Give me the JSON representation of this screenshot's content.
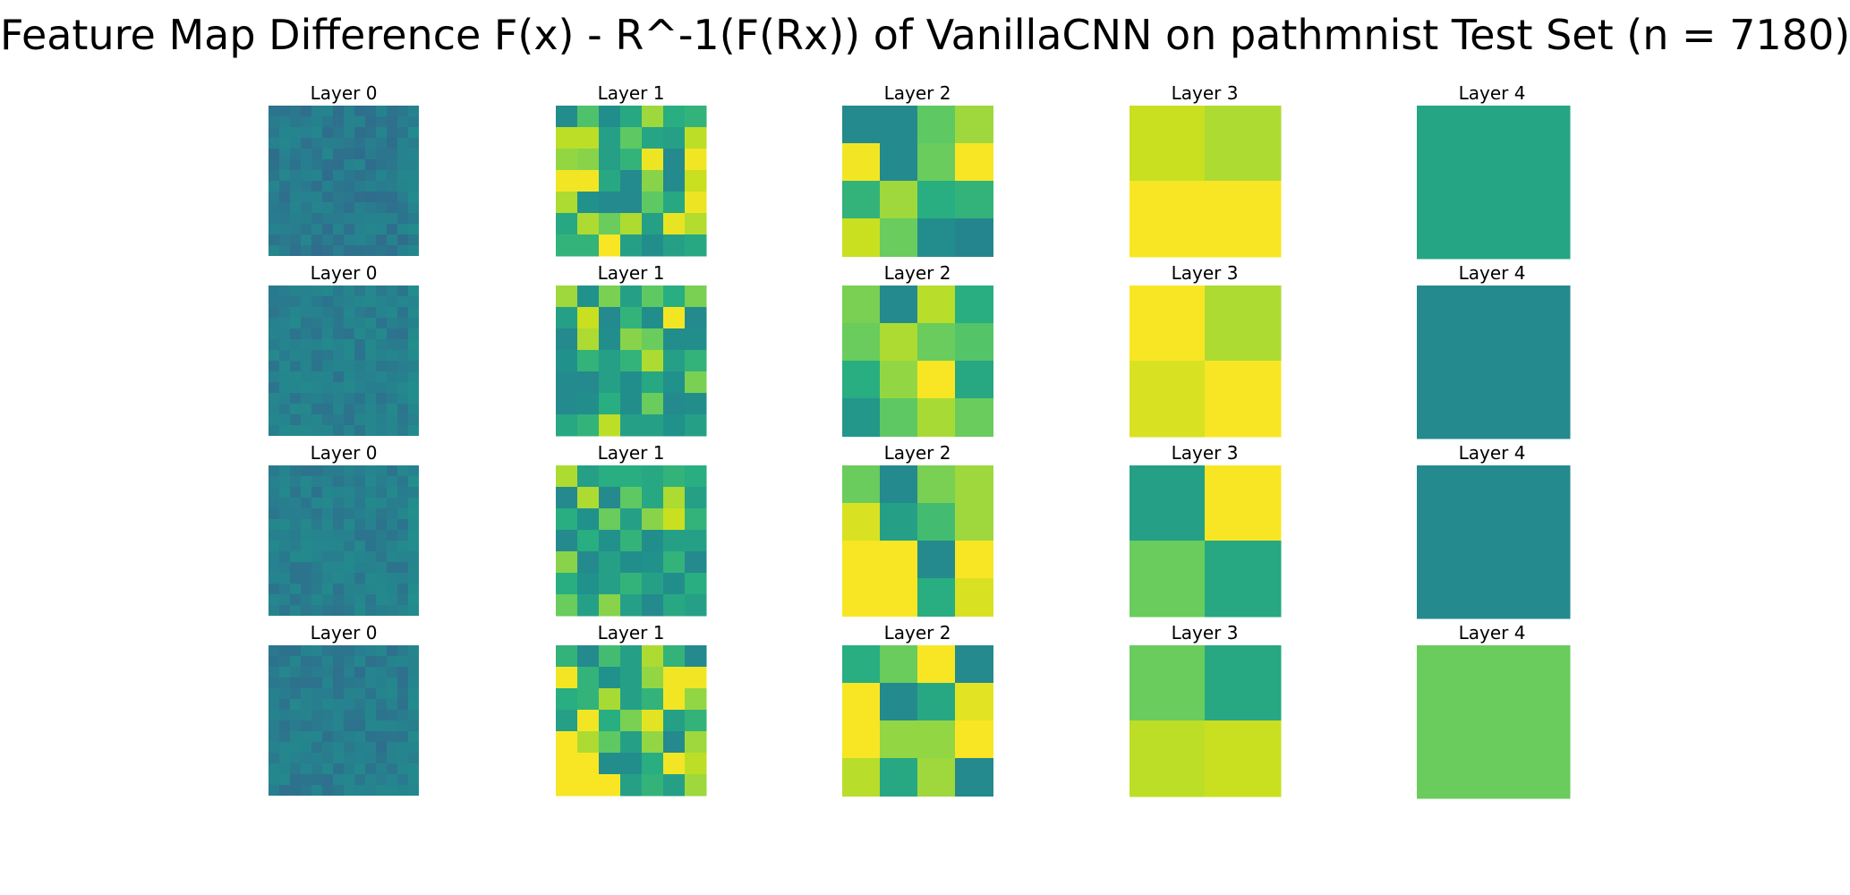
{
  "title": "Feature Map Difference F(x) - R^-1(F(Rx)) of VanillaCNN on pathmnist Test Set (n = 7180)",
  "chart_data": {
    "type": "heatmap",
    "colormap": "viridis (upper range)",
    "grid": false,
    "axes_visible": false,
    "rows": [
      {
        "panels": [
          {
            "title": "Layer 0",
            "size": 14,
            "noise": {
              "base": 0.38,
              "amp": 0.05,
              "seed": 11
            }
          },
          {
            "title": "Layer 1",
            "size": 7,
            "values": [
              [
                0.47,
                0.67,
                0.48,
                0.58,
                0.82,
                0.6,
                0.62
              ],
              [
                0.88,
                0.88,
                0.55,
                0.7,
                0.57,
                0.55,
                0.88
              ],
              [
                0.8,
                0.78,
                0.55,
                0.62,
                0.97,
                0.45,
                0.98
              ],
              [
                0.98,
                0.98,
                0.58,
                0.46,
                0.78,
                0.45,
                0.9
              ],
              [
                0.85,
                0.5,
                0.45,
                0.45,
                0.7,
                0.58,
                0.97
              ],
              [
                0.58,
                0.85,
                0.72,
                0.85,
                0.55,
                0.96,
                0.86
              ],
              [
                0.62,
                0.62,
                0.99,
                0.55,
                0.48,
                0.55,
                0.58
              ]
            ]
          },
          {
            "title": "Layer 2",
            "size": 4,
            "values": [
              [
                0.45,
                0.45,
                0.7,
                0.82
              ],
              [
                0.98,
                0.45,
                0.72,
                0.99
              ],
              [
                0.62,
                0.82,
                0.6,
                0.62
              ],
              [
                0.9,
                0.72,
                0.47,
                0.42
              ]
            ]
          },
          {
            "title": "Layer 3",
            "size": 2,
            "values": [
              [
                0.9,
                0.85
              ],
              [
                0.99,
                0.99
              ]
            ]
          },
          {
            "title": "Layer 4",
            "size": 1,
            "values": [
              [
                0.57
              ]
            ]
          }
        ]
      },
      {
        "panels": [
          {
            "title": "Layer 0",
            "size": 14,
            "noise": {
              "base": 0.4,
              "amp": 0.05,
              "seed": 23
            }
          },
          {
            "title": "Layer 1",
            "size": 7,
            "values": [
              [
                0.82,
                0.5,
                0.75,
                0.55,
                0.7,
                0.6,
                0.75
              ],
              [
                0.55,
                0.9,
                0.45,
                0.62,
                0.48,
                0.98,
                0.45
              ],
              [
                0.45,
                0.85,
                0.48,
                0.78,
                0.72,
                0.48,
                0.48
              ],
              [
                0.5,
                0.62,
                0.55,
                0.62,
                0.85,
                0.55,
                0.62
              ],
              [
                0.45,
                0.45,
                0.55,
                0.48,
                0.58,
                0.5,
                0.75
              ],
              [
                0.45,
                0.48,
                0.6,
                0.48,
                0.72,
                0.45,
                0.48
              ],
              [
                0.58,
                0.62,
                0.88,
                0.55,
                0.55,
                0.5,
                0.55
              ]
            ]
          },
          {
            "title": "Layer 2",
            "size": 4,
            "values": [
              [
                0.75,
                0.45,
                0.87,
                0.6
              ],
              [
                0.72,
                0.85,
                0.72,
                0.68
              ],
              [
                0.6,
                0.8,
                0.99,
                0.58
              ],
              [
                0.52,
                0.7,
                0.84,
                0.72
              ]
            ]
          },
          {
            "title": "Layer 3",
            "size": 2,
            "values": [
              [
                0.99,
                0.85
              ],
              [
                0.93,
                0.99
              ]
            ]
          },
          {
            "title": "Layer 4",
            "size": 1,
            "values": [
              [
                0.45
              ]
            ]
          }
        ]
      },
      {
        "panels": [
          {
            "title": "Layer 0",
            "size": 14,
            "noise": {
              "base": 0.4,
              "amp": 0.05,
              "seed": 37
            }
          },
          {
            "title": "Layer 1",
            "size": 7,
            "values": [
              [
                0.85,
                0.55,
                0.6,
                0.6,
                0.58,
                0.62,
                0.6
              ],
              [
                0.45,
                0.85,
                0.45,
                0.7,
                0.58,
                0.85,
                0.55
              ],
              [
                0.6,
                0.5,
                0.72,
                0.55,
                0.78,
                0.9,
                0.62
              ],
              [
                0.45,
                0.6,
                0.5,
                0.62,
                0.48,
                0.55,
                0.55
              ],
              [
                0.78,
                0.45,
                0.55,
                0.48,
                0.5,
                0.62,
                0.45
              ],
              [
                0.6,
                0.5,
                0.55,
                0.62,
                0.55,
                0.48,
                0.6
              ],
              [
                0.72,
                0.55,
                0.78,
                0.55,
                0.45,
                0.58,
                0.55
              ]
            ]
          },
          {
            "title": "Layer 2",
            "size": 4,
            "values": [
              [
                0.72,
                0.45,
                0.75,
                0.82
              ],
              [
                0.93,
                0.55,
                0.65,
                0.82
              ],
              [
                0.99,
                0.99,
                0.45,
                0.99
              ],
              [
                0.99,
                0.99,
                0.6,
                0.93
              ]
            ]
          },
          {
            "title": "Layer 3",
            "size": 2,
            "values": [
              [
                0.55,
                0.99
              ],
              [
                0.72,
                0.58
              ]
            ]
          },
          {
            "title": "Layer 4",
            "size": 1,
            "values": [
              [
                0.45
              ]
            ]
          }
        ]
      },
      {
        "panels": [
          {
            "title": "Layer 0",
            "size": 14,
            "noise": {
              "base": 0.39,
              "amp": 0.05,
              "seed": 53
            }
          },
          {
            "title": "Layer 1",
            "size": 7,
            "values": [
              [
                0.62,
                0.45,
                0.65,
                0.55,
                0.85,
                0.62,
                0.45
              ],
              [
                0.98,
                0.62,
                0.5,
                0.55,
                0.8,
                0.98,
                0.98
              ],
              [
                0.6,
                0.62,
                0.84,
                0.55,
                0.62,
                0.98,
                0.8
              ],
              [
                0.55,
                0.98,
                0.6,
                0.75,
                0.95,
                0.55,
                0.62
              ],
              [
                0.99,
                0.85,
                0.7,
                0.55,
                0.8,
                0.45,
                0.82
              ],
              [
                0.99,
                0.99,
                0.48,
                0.48,
                0.6,
                0.98,
                0.88
              ],
              [
                0.99,
                0.99,
                0.99,
                0.55,
                0.62,
                0.55,
                0.82
              ]
            ]
          },
          {
            "title": "Layer 2",
            "size": 4,
            "values": [
              [
                0.6,
                0.72,
                0.99,
                0.45
              ],
              [
                0.99,
                0.45,
                0.58,
                0.95
              ],
              [
                0.99,
                0.8,
                0.8,
                0.99
              ],
              [
                0.87,
                0.58,
                0.82,
                0.45
              ]
            ]
          },
          {
            "title": "Layer 3",
            "size": 2,
            "values": [
              [
                0.72,
                0.58
              ],
              [
                0.88,
                0.9
              ]
            ]
          },
          {
            "title": "Layer 4",
            "size": 1,
            "values": [
              [
                0.72
              ]
            ]
          }
        ]
      }
    ]
  }
}
